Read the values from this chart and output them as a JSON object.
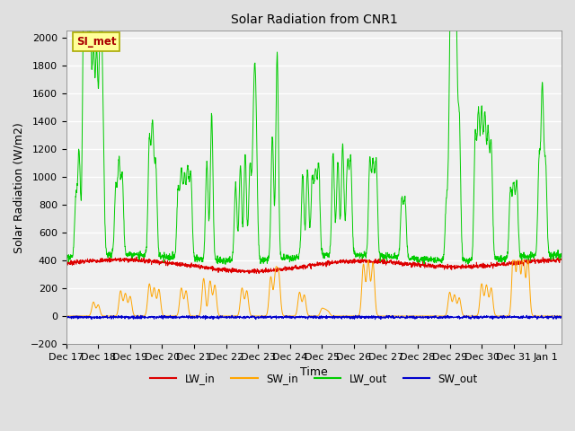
{
  "title": "Solar Radiation from CNR1",
  "xlabel": "Time",
  "ylabel": "Solar Radiation (W/m2)",
  "ylim": [
    -200,
    2050
  ],
  "yticks": [
    -200,
    0,
    200,
    400,
    600,
    800,
    1000,
    1200,
    1400,
    1600,
    1800,
    2000
  ],
  "bg_color": "#e0e0e0",
  "plot_bg_color": "#f0f0f0",
  "series_colors": {
    "LW_in": "#dd0000",
    "SW_in": "#ffa500",
    "LW_out": "#00cc00",
    "SW_out": "#0000cc"
  },
  "annotation_text": "SI_met",
  "annotation_color": "#aa0000",
  "annotation_bg": "#ffff99",
  "annotation_border": "#aaaa00",
  "xtick_labels": [
    "Dec 17",
    "Dec 18",
    "Dec 19",
    "Dec 20",
    "Dec 21",
    "Dec 22",
    "Dec 23",
    "Dec 24",
    "Dec 25",
    "Dec 26",
    "Dec 27",
    "Dec 28",
    "Dec 29",
    "Dec 30",
    "Dec 31",
    "Jan 1"
  ]
}
